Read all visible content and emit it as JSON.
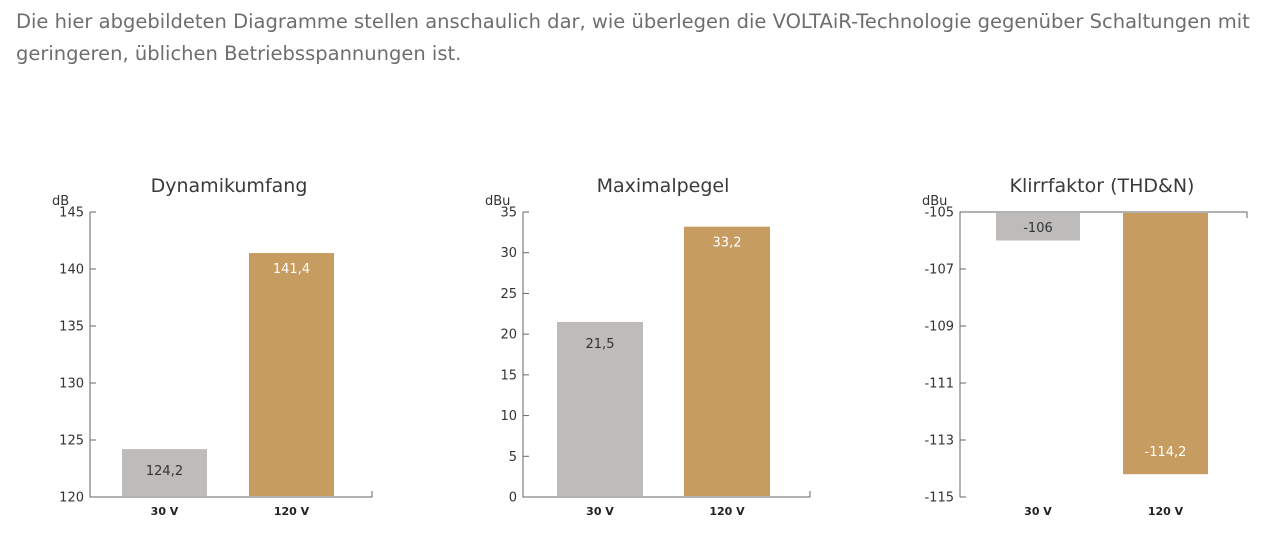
{
  "intro_text": "Die hier abgebildeten Diagramme stellen anschaulich dar, wie überlegen die VOLTAiR-Technologie gegenüber Schaltungen mit geringeren, üblichen Betriebsspannungen ist.",
  "colors": {
    "bar_30v": "#bdbcba",
    "bar_120v": "#c79c60",
    "label_on_gray": "#333333",
    "label_on_gold": "#ffffff"
  },
  "chart_data": [
    {
      "type": "bar",
      "title": "Dynamikumfang",
      "ylabel": "dB",
      "categories": [
        "30 V",
        "120 V"
      ],
      "values": [
        124.2,
        141.4
      ],
      "value_labels": [
        "124,2",
        "141,4"
      ],
      "ylim": [
        120,
        145
      ],
      "ticks": [
        120,
        125,
        130,
        135,
        140,
        145
      ],
      "tick_labels": [
        "120",
        "125",
        "130",
        "135",
        "140",
        "145"
      ],
      "direction": "up",
      "grid": false
    },
    {
      "type": "bar",
      "title": "Maximalpegel",
      "ylabel": "dBu",
      "categories": [
        "30 V",
        "120 V"
      ],
      "values": [
        21.5,
        33.2
      ],
      "value_labels": [
        "21,5",
        "33,2"
      ],
      "ylim": [
        0,
        35
      ],
      "ticks": [
        0,
        5,
        10,
        15,
        20,
        25,
        30,
        35
      ],
      "tick_labels": [
        "0",
        "5",
        "10",
        "15",
        "20",
        "25",
        "30",
        "35"
      ],
      "direction": "up",
      "grid": false
    },
    {
      "type": "bar",
      "title": "Klirrfaktor (THD&N)",
      "ylabel": "dBu",
      "categories": [
        "30 V",
        "120 V"
      ],
      "values": [
        -106,
        -114.2
      ],
      "value_labels": [
        "-106",
        "-114,2"
      ],
      "ylim": [
        -115,
        -105
      ],
      "ticks": [
        -115,
        -113,
        -111,
        -109,
        -107,
        -105
      ],
      "tick_labels": [
        "-115",
        "-113",
        "-111",
        "-109",
        "-107",
        "-105"
      ],
      "direction": "down",
      "grid": false
    }
  ]
}
